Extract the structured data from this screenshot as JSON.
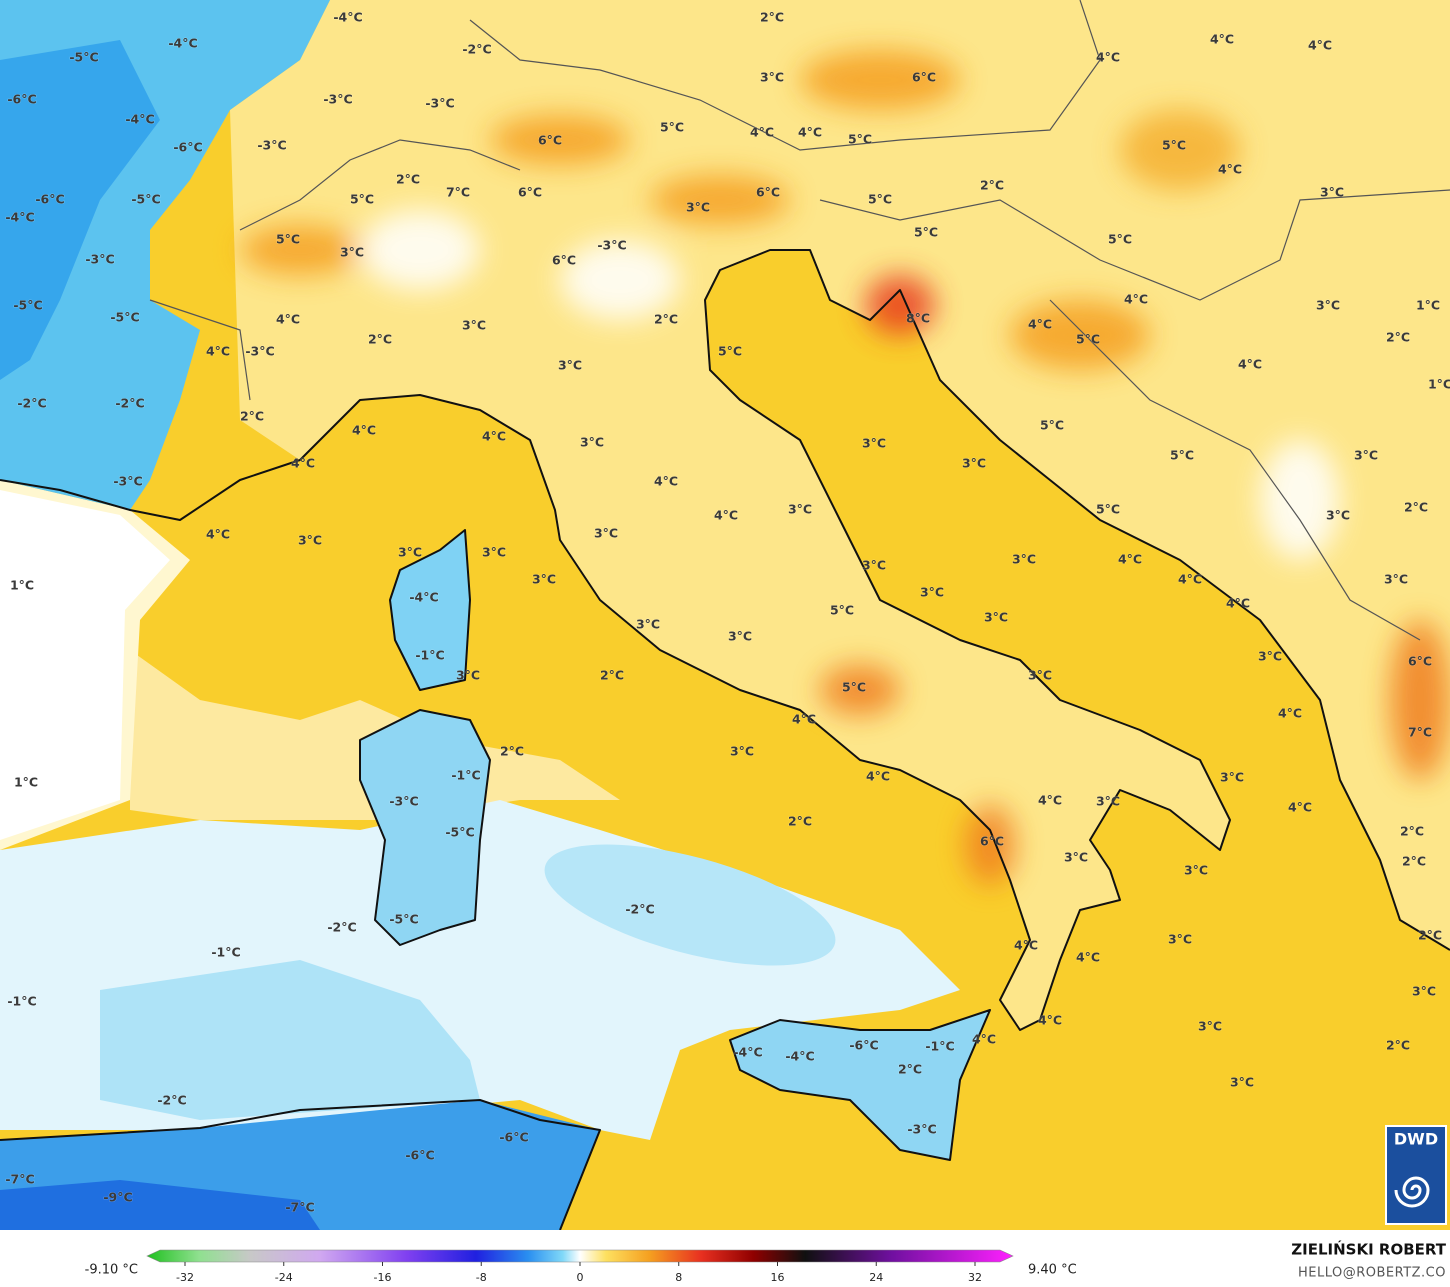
{
  "map": {
    "temperature_labels": [
      "-4°C",
      "-4°C",
      "-5°C",
      "-6°C",
      "-4°C",
      "-3°C",
      "-3°C",
      "-2°C",
      "-6°C",
      "-3°C",
      "-6°C",
      "-5°C",
      "-4°C",
      "-3°C",
      "-5°C",
      "-5°C",
      "-2°C",
      "-2°C",
      "-3°C",
      "-3°C",
      "4°C",
      "4°C",
      "5°C",
      "3°C",
      "5°C",
      "2°C",
      "7°C",
      "6°C",
      "-3°C",
      "6°C",
      "6°C",
      "5°C",
      "3°C",
      "6°C",
      "4°C",
      "4°C",
      "5°C",
      "2°C",
      "3°C",
      "6°C",
      "5°C",
      "5°C",
      "2°C",
      "4°C",
      "4°C",
      "4°C",
      "5°C",
      "4°C",
      "3°C",
      "5°C",
      "4°C",
      "4°C",
      "5°C",
      "3°C",
      "1°C",
      "2°C",
      "4°C",
      "1°C",
      "2°C",
      "4°C",
      "4°C",
      "2°C",
      "3°C",
      "3°C",
      "2°C",
      "5°C",
      "8°C",
      "4°C",
      "3°C",
      "3°C",
      "3°C",
      "5°C",
      "5°C",
      "3°C",
      "4°C",
      "4°C",
      "3°C",
      "3°C",
      "5°C",
      "3°C",
      "2°C",
      "4°C",
      "3°C",
      "3°C",
      "3°C",
      "3°C",
      "3°C",
      "3°C",
      "4°C",
      "4°C",
      "4°C",
      "3°C",
      "1°C",
      "-4°C",
      "-1°C",
      "3°C",
      "3°C",
      "3°C",
      "3°C",
      "5°C",
      "3°C",
      "2°C",
      "3°C",
      "3°C",
      "6°C",
      "5°C",
      "4°C",
      "4°C",
      "7°C",
      "1°C",
      "2°C",
      "-1°C",
      "3°C",
      "4°C",
      "3°C",
      "-3°C",
      "-5°C",
      "2°C",
      "4°C",
      "3°C",
      "4°C",
      "2°C",
      "6°C",
      "3°C",
      "3°C",
      "2°C",
      "-5°C",
      "-2°C",
      "-2°C",
      "3°C",
      "2°C",
      "-1°C",
      "4°C",
      "4°C",
      "-1°C",
      "3°C",
      "3°C",
      "4°C",
      "4°C",
      "-4°C",
      "-4°C",
      "-6°C",
      "-1°C",
      "2°C",
      "2°C",
      "3°C",
      "-2°C",
      "-3°C",
      "-6°C",
      "-6°C",
      "-7°C",
      "-9°C",
      "-7°C"
    ],
    "colorbar": {
      "min_label": "-9.10 °C",
      "max_label": "9.40 °C",
      "ticks": [
        -32,
        -24,
        -16,
        -8,
        0,
        8,
        16,
        24,
        32
      ]
    },
    "credit": {
      "author": "ZIELIŃSKI ROBERT",
      "email": "HELLO@ROBERTZ.CO"
    },
    "logo": "DWD"
  }
}
